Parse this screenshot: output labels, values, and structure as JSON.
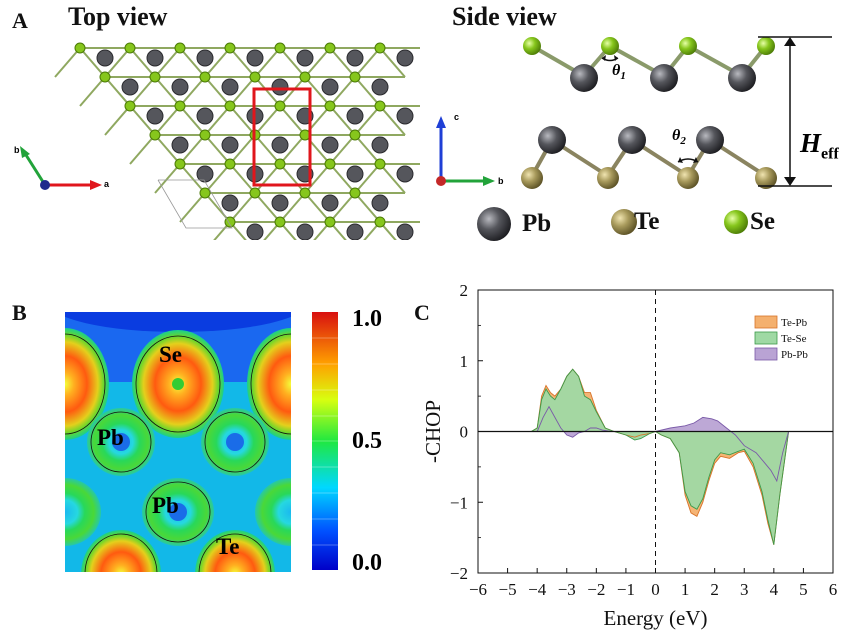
{
  "panel_a": {
    "letter": "A",
    "top_view_title": "Top view",
    "side_view_title": "Side view",
    "axes_top": {
      "a": "a",
      "b": "b"
    },
    "axes_side": {
      "c": "c",
      "b": "b"
    },
    "theta1": "θ",
    "theta1_sub": "1",
    "theta2": "θ",
    "theta2_sub": "2",
    "heff": "H",
    "heff_sub": "eff",
    "legend": [
      {
        "label": "Pb",
        "color": "#55565c"
      },
      {
        "label": "Te",
        "color": "#a89a5c"
      },
      {
        "label": "Se",
        "color": "#86c61c"
      }
    ]
  },
  "panel_b": {
    "letter": "B",
    "atom_labels": [
      "Se",
      "Pb",
      "Pb",
      "Te"
    ],
    "colorbar_ticks": [
      "1.0",
      "0.5",
      "0.0"
    ]
  },
  "panel_c": {
    "letter": "C",
    "chart_data": {
      "type": "area",
      "xlabel": "Energy (eV)",
      "ylabel": "-CHOP",
      "xlim": [
        -6,
        6
      ],
      "ylim": [
        -2,
        2
      ],
      "xticks": [
        -6,
        -5,
        -4,
        -3,
        -2,
        -1,
        0,
        1,
        2,
        3,
        4,
        5,
        6
      ],
      "yticks": [
        -2,
        -1,
        0,
        1,
        2
      ],
      "fermi_line_x": 0,
      "legend_position": "top-right",
      "series": [
        {
          "name": "Te-Pb",
          "color": "#f4b06e",
          "x": [
            -6,
            -4.2,
            -4.0,
            -3.85,
            -3.7,
            -3.55,
            -3.4,
            -3.2,
            -3.0,
            -2.8,
            -2.6,
            -2.4,
            -2.2,
            -2.0,
            -1.7,
            -1.4,
            -1.0,
            -0.7,
            -0.5,
            -0.2,
            0,
            0.2,
            0.5,
            0.8,
            1.0,
            1.2,
            1.4,
            1.6,
            1.8,
            2.0,
            2.2,
            2.5,
            2.8,
            3.0,
            3.3,
            3.6,
            3.8,
            4.0,
            4.2,
            4.5,
            6
          ],
          "y": [
            0,
            0,
            0.05,
            0.5,
            0.65,
            0.55,
            0.5,
            0.6,
            0.78,
            0.88,
            0.78,
            0.55,
            0.55,
            0.3,
            0.05,
            0.0,
            -0.05,
            -0.08,
            -0.05,
            -0.03,
            0,
            -0.05,
            -0.1,
            -0.3,
            -0.9,
            -1.15,
            -1.2,
            -1.0,
            -0.7,
            -0.45,
            -0.35,
            -0.38,
            -0.3,
            -0.28,
            -0.5,
            -0.9,
            -1.3,
            -1.6,
            -0.9,
            0,
            0
          ]
        },
        {
          "name": "Te-Se",
          "color": "#9fd9a4",
          "x": [
            -6,
            -4.2,
            -4.0,
            -3.85,
            -3.7,
            -3.55,
            -3.4,
            -3.2,
            -3.0,
            -2.8,
            -2.6,
            -2.4,
            -2.2,
            -2.0,
            -1.7,
            -1.4,
            -1.0,
            -0.7,
            -0.5,
            -0.2,
            0,
            0.2,
            0.5,
            0.8,
            1.0,
            1.2,
            1.4,
            1.6,
            1.8,
            2.0,
            2.2,
            2.5,
            2.8,
            3.0,
            3.3,
            3.6,
            3.8,
            4.0,
            4.2,
            4.5,
            6
          ],
          "y": [
            0,
            0,
            0.05,
            0.45,
            0.6,
            0.5,
            0.45,
            0.6,
            0.78,
            0.88,
            0.78,
            0.5,
            0.45,
            0.28,
            0.05,
            0.0,
            -0.05,
            -0.12,
            -0.1,
            -0.03,
            0,
            -0.05,
            -0.1,
            -0.3,
            -0.85,
            -1.05,
            -1.1,
            -0.95,
            -0.65,
            -0.4,
            -0.3,
            -0.33,
            -0.28,
            -0.25,
            -0.45,
            -0.85,
            -1.25,
            -1.6,
            -0.9,
            0,
            0
          ]
        },
        {
          "name": "Pb-Pb",
          "color": "#b9a3d4",
          "x": [
            -6,
            -4.0,
            -3.8,
            -3.6,
            -3.4,
            -3.2,
            -3.0,
            -2.8,
            -2.6,
            -2.4,
            -2.2,
            -2.0,
            -1.8,
            -1.5,
            0,
            0.5,
            1.0,
            1.3,
            1.6,
            1.9,
            2.1,
            2.4,
            2.7,
            3.0,
            3.4,
            3.7,
            3.9,
            4.1,
            4.3,
            4.5,
            6
          ],
          "y": [
            0,
            0,
            0.2,
            0.35,
            0.2,
            0.05,
            -0.05,
            -0.08,
            -0.02,
            0.0,
            0.05,
            0.05,
            0.02,
            0,
            0,
            0.05,
            0.08,
            0.12,
            0.2,
            0.18,
            0.15,
            0.05,
            -0.05,
            -0.2,
            -0.3,
            -0.45,
            -0.55,
            -0.7,
            -0.3,
            0,
            0
          ]
        }
      ]
    }
  }
}
